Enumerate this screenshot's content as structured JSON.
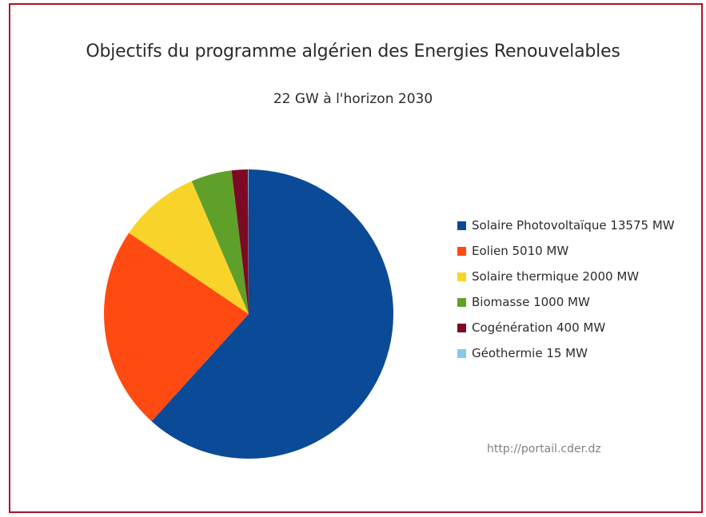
{
  "chart_data": {
    "type": "pie",
    "title": "Objectifs du programme algérien des Energies Renouvelables",
    "subtitle": "22 GW à l'horizon 2030",
    "slices": [
      {
        "label": "Solaire Photovoltaïque 13575 MW",
        "value": 13575,
        "color": "#0b4a97"
      },
      {
        "label": "Eolien 5010 MW",
        "value": 5010,
        "color": "#ff4a12"
      },
      {
        "label": "Solaire thermique 2000 MW",
        "value": 2000,
        "color": "#f8d42a"
      },
      {
        "label": "Biomasse 1000 MW",
        "value": 1000,
        "color": "#5fa02a"
      },
      {
        "label": "Cogénération 400 MW",
        "value": 400,
        "color": "#7c0a24"
      },
      {
        "label": "Géothermie 15 MW",
        "value": 15,
        "color": "#86c6ec"
      }
    ],
    "legend_position": "right",
    "source": "http://portail.cder.dz"
  }
}
